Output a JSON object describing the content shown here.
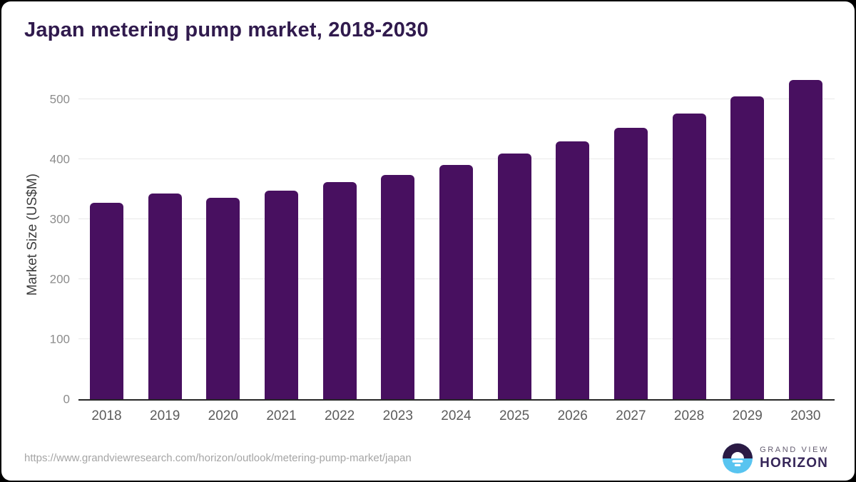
{
  "chart_data": {
    "type": "bar",
    "title": "Japan metering pump market, 2018-2030",
    "categories": [
      "2018",
      "2019",
      "2020",
      "2021",
      "2022",
      "2023",
      "2024",
      "2025",
      "2026",
      "2027",
      "2028",
      "2029",
      "2030"
    ],
    "values": [
      327,
      343,
      335,
      347,
      361,
      374,
      390,
      409,
      429,
      452,
      476,
      504,
      532
    ],
    "xlabel": "",
    "ylabel": "Market Size (US$M)",
    "ylim": [
      0,
      547
    ],
    "yticks": [
      0,
      100,
      200,
      300,
      400,
      500
    ],
    "legend": "none",
    "grid": "horizontal",
    "bar_color": "#481060",
    "gridline_color": "#e9e9e9",
    "axis_line_color": "#262626",
    "title_color": "#301a4d"
  },
  "footer": {
    "source_url": "https://www.grandviewresearch.com/horizon/outlook/metering-pump-market/japan",
    "logo": {
      "brand_top": "GRAND VIEW",
      "brand_bottom": "HORIZON",
      "circle_top_color": "#2b1a44",
      "circle_bottom_color": "#58c4f0"
    }
  }
}
